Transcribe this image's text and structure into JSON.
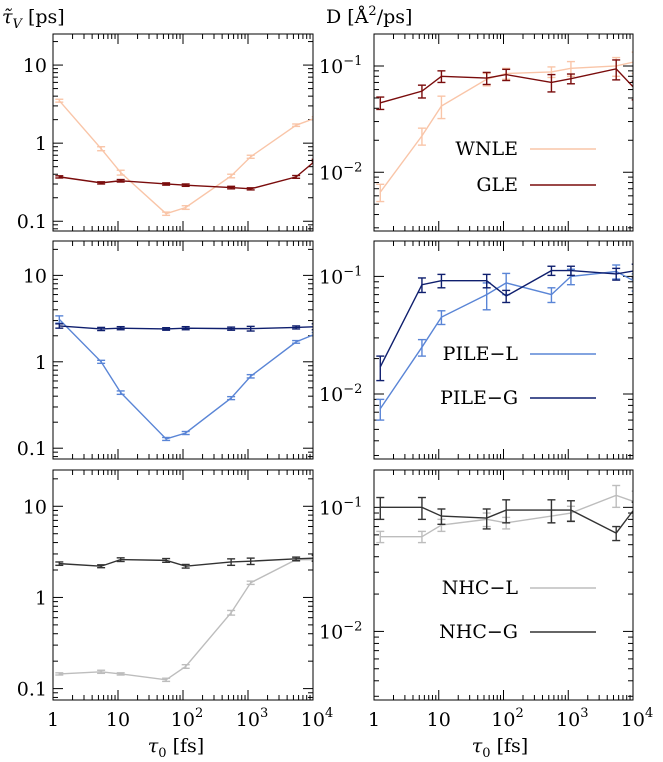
{
  "figure": {
    "left_title": "τ̃_V [ps]",
    "right_title": "D [Å²/ps]",
    "xlabel_left": "τ0 [fs]",
    "xlabel_right": "τ0 [fs]"
  },
  "chart_data": [
    {
      "type": "line",
      "panel": "tau-gle",
      "xscale": "log",
      "yscale": "log",
      "xlim": [
        1,
        10000
      ],
      "ylim": [
        0.075,
        25
      ],
      "x": [
        1.25,
        5.5,
        11,
        55,
        110,
        550,
        1100,
        5500,
        11000
      ],
      "series": [
        {
          "name": "WNLE",
          "color": "#f9c5a8",
          "values": [
            3.5,
            0.85,
            0.42,
            0.125,
            0.15,
            0.38,
            0.67,
            1.7,
            2.1
          ],
          "errors": [
            0.15,
            0.05,
            0.03,
            0.006,
            0.008,
            0.02,
            0.03,
            0.06,
            0.08
          ]
        },
        {
          "name": "GLE",
          "color": "#7a0c0c",
          "values": [
            0.37,
            0.31,
            0.33,
            0.3,
            0.29,
            0.27,
            0.26,
            0.37,
            0.6
          ],
          "errors": [
            0.012,
            0.01,
            0.012,
            0.01,
            0.01,
            0.01,
            0.008,
            0.015,
            0.02
          ]
        }
      ],
      "yticks": [
        0.1,
        1,
        10
      ],
      "ytick_labels": [
        "0.1",
        "1",
        "10"
      ]
    },
    {
      "type": "line",
      "panel": "d-gle",
      "xscale": "log",
      "yscale": "log",
      "xlim": [
        1,
        10000
      ],
      "ylim": [
        0.0028,
        0.2
      ],
      "x": [
        1.25,
        5.5,
        11,
        55,
        110,
        550,
        1100,
        5500,
        11000
      ],
      "series": [
        {
          "name": "WNLE",
          "color": "#f9c5a8",
          "values": [
            0.0065,
            0.022,
            0.042,
            0.075,
            0.085,
            0.088,
            0.095,
            0.1,
            0.11
          ],
          "errors": [
            0.0012,
            0.004,
            0.01,
            0.01,
            0.01,
            0.01,
            0.015,
            0.02,
            0.025
          ]
        },
        {
          "name": "GLE",
          "color": "#7a0c0c",
          "values": [
            0.045,
            0.058,
            0.08,
            0.077,
            0.083,
            0.07,
            0.076,
            0.094,
            0.06
          ],
          "errors": [
            0.006,
            0.008,
            0.01,
            0.01,
            0.01,
            0.013,
            0.008,
            0.02,
            0.012
          ]
        }
      ],
      "yticks": [
        0.01,
        0.1
      ],
      "ytick_labels": [
        "10−2",
        "10−1"
      ]
    },
    {
      "type": "line",
      "panel": "tau-pile",
      "xscale": "log",
      "yscale": "log",
      "xlim": [
        1,
        10000
      ],
      "ylim": [
        0.075,
        25
      ],
      "x": [
        1.25,
        5.5,
        11,
        55,
        110,
        550,
        1100,
        5500,
        11000
      ],
      "series": [
        {
          "name": "PILE−L",
          "color": "#5a85d6",
          "values": [
            3.1,
            1.0,
            0.44,
            0.128,
            0.15,
            0.38,
            0.68,
            1.7,
            2.1
          ],
          "errors": [
            0.3,
            0.04,
            0.02,
            0.005,
            0.006,
            0.015,
            0.03,
            0.06,
            0.08
          ]
        },
        {
          "name": "PILE−G",
          "color": "#0f1f6e",
          "values": [
            2.6,
            2.4,
            2.45,
            2.4,
            2.45,
            2.42,
            2.42,
            2.5,
            2.55
          ],
          "errors": [
            0.15,
            0.1,
            0.1,
            0.08,
            0.1,
            0.1,
            0.15,
            0.1,
            0.2
          ]
        }
      ],
      "yticks": [
        0.1,
        1,
        10
      ],
      "ytick_labels": [
        "0.1",
        "1",
        "10"
      ]
    },
    {
      "type": "line",
      "panel": "d-pile",
      "xscale": "log",
      "yscale": "log",
      "xlim": [
        1,
        10000
      ],
      "ylim": [
        0.0028,
        0.2
      ],
      "x": [
        1.25,
        5.5,
        11,
        55,
        110,
        550,
        1100,
        5500,
        11000
      ],
      "series": [
        {
          "name": "PILE−L",
          "color": "#5a85d6",
          "values": [
            0.0075,
            0.025,
            0.045,
            0.07,
            0.088,
            0.07,
            0.1,
            0.11,
            0.09
          ],
          "errors": [
            0.0015,
            0.004,
            0.006,
            0.018,
            0.018,
            0.01,
            0.015,
            0.015,
            0.015
          ]
        },
        {
          "name": "PILE−G",
          "color": "#0f1f6e",
          "values": [
            0.017,
            0.085,
            0.092,
            0.092,
            0.068,
            0.112,
            0.112,
            0.105,
            0.112
          ],
          "errors": [
            0.004,
            0.012,
            0.012,
            0.012,
            0.008,
            0.01,
            0.01,
            0.012,
            0.015
          ]
        }
      ],
      "yticks": [
        0.01,
        0.1
      ],
      "ytick_labels": [
        "10−2",
        "10−1"
      ]
    },
    {
      "type": "line",
      "panel": "tau-nhc",
      "xscale": "log",
      "yscale": "log",
      "xlim": [
        1,
        10000
      ],
      "ylim": [
        0.075,
        25
      ],
      "x": [
        1.25,
        5.5,
        11,
        55,
        110,
        550,
        1100,
        5500,
        11000
      ],
      "series": [
        {
          "name": "NHC−L",
          "color": "#bdbdbd",
          "values": [
            0.145,
            0.153,
            0.145,
            0.125,
            0.175,
            0.68,
            1.45,
            2.6,
            2.6
          ],
          "errors": [
            0.004,
            0.006,
            0.004,
            0.005,
            0.008,
            0.04,
            0.06,
            0.1,
            0.1
          ]
        },
        {
          "name": "NHC−G",
          "color": "#333333",
          "values": [
            2.35,
            2.2,
            2.6,
            2.55,
            2.2,
            2.45,
            2.5,
            2.65,
            2.7
          ],
          "errors": [
            0.1,
            0.08,
            0.12,
            0.12,
            0.1,
            0.2,
            0.2,
            0.12,
            0.2
          ]
        }
      ],
      "yticks": [
        0.1,
        1,
        10
      ],
      "ytick_labels": [
        "0.1",
        "1",
        "10"
      ]
    },
    {
      "type": "line",
      "panel": "d-nhc",
      "xscale": "log",
      "yscale": "log",
      "xlim": [
        1,
        10000
      ],
      "ylim": [
        0.0028,
        0.2
      ],
      "x": [
        1.25,
        5.5,
        11,
        55,
        110,
        550,
        1100,
        5500,
        11000
      ],
      "series": [
        {
          "name": "NHC−L",
          "color": "#bdbdbd",
          "values": [
            0.058,
            0.058,
            0.072,
            0.08,
            0.075,
            0.085,
            0.09,
            0.125,
            0.11
          ],
          "errors": [
            0.006,
            0.006,
            0.008,
            0.01,
            0.008,
            0.01,
            0.012,
            0.025,
            0.025
          ]
        },
        {
          "name": "NHC−G",
          "color": "#333333",
          "values": [
            0.1,
            0.1,
            0.085,
            0.082,
            0.095,
            0.095,
            0.095,
            0.062,
            0.1
          ],
          "errors": [
            0.02,
            0.02,
            0.012,
            0.015,
            0.02,
            0.02,
            0.018,
            0.008,
            0.01
          ]
        }
      ],
      "yticks": [
        0.01,
        0.1
      ],
      "ytick_labels": [
        "10−2",
        "10−1"
      ]
    }
  ],
  "xticks": [
    1,
    10,
    100,
    1000,
    10000
  ],
  "xtick_labels": [
    "1",
    "10",
    "10",
    "10",
    "10"
  ],
  "xtick_exponents": [
    "",
    "",
    "2",
    "3",
    "4"
  ]
}
